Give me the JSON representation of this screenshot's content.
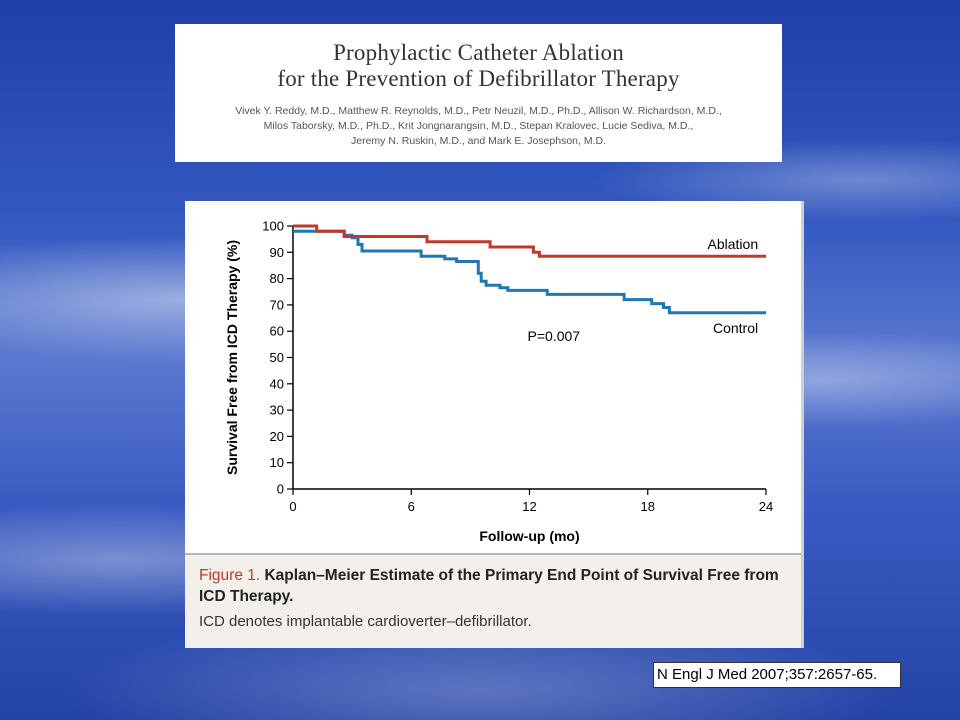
{
  "slide": {
    "title_line1": "Prophylactic Catheter Ablation",
    "title_line2": "for the Prevention of Defibrillator Therapy",
    "authors_line1": "Vivek Y. Reddy, M.D., Matthew R. Reynolds, M.D., Petr Neuzil, M.D., Ph.D., Allison W. Richardson, M.D.,",
    "authors_line2": "Milos Taborsky, M.D., Ph.D., Krit Jongnarangsin, M.D., Stepan Kralovec, Lucie Sediva, M.D.,",
    "authors_line3": "Jeremy N. Ruskin, M.D., and Mark E. Josephson, M.D.",
    "citation": "N Engl J Med 2007;357:2657-65."
  },
  "figure": {
    "label": "Figure 1.",
    "title": "Kaplan–Meier Estimate of the Primary End Point of Survival Free from ICD Therapy.",
    "description": "ICD denotes implantable cardioverter–defibrillator."
  },
  "chart_data": {
    "type": "line",
    "step": true,
    "xlabel": "Follow-up (mo)",
    "ylabel": "Survival Free from ICD Therapy (%)",
    "xlim": [
      0,
      24
    ],
    "ylim": [
      0,
      100
    ],
    "x_ticks": [
      0,
      6,
      12,
      18,
      24
    ],
    "y_ticks": [
      0,
      10,
      20,
      30,
      40,
      50,
      60,
      70,
      80,
      90,
      100
    ],
    "grid": false,
    "annotation": "P=0.007",
    "series": [
      {
        "name": "Ablation",
        "color": "#c0392b",
        "points": [
          [
            0,
            100
          ],
          [
            1.2,
            100
          ],
          [
            1.2,
            98
          ],
          [
            2.6,
            98
          ],
          [
            2.6,
            96
          ],
          [
            6.8,
            96
          ],
          [
            6.8,
            94
          ],
          [
            10,
            94
          ],
          [
            10,
            92
          ],
          [
            12.2,
            92
          ],
          [
            12.2,
            90
          ],
          [
            12.5,
            90
          ],
          [
            12.5,
            88.5
          ],
          [
            24,
            88.5
          ]
        ]
      },
      {
        "name": "Control",
        "color": "#1f78b4",
        "points": [
          [
            0,
            98
          ],
          [
            2.6,
            98
          ],
          [
            2.6,
            96.5
          ],
          [
            3,
            96.5
          ],
          [
            3,
            95.5
          ],
          [
            3.3,
            95.5
          ],
          [
            3.3,
            93
          ],
          [
            3.5,
            93
          ],
          [
            3.5,
            90.5
          ],
          [
            6.5,
            90.5
          ],
          [
            6.5,
            88.5
          ],
          [
            7.7,
            88.5
          ],
          [
            7.7,
            87.5
          ],
          [
            8.3,
            87.5
          ],
          [
            8.3,
            86.5
          ],
          [
            9.4,
            86.5
          ],
          [
            9.4,
            82
          ],
          [
            9.55,
            82
          ],
          [
            9.55,
            79
          ],
          [
            9.8,
            79
          ],
          [
            9.8,
            77.5
          ],
          [
            10.5,
            77.5
          ],
          [
            10.5,
            76.5
          ],
          [
            10.9,
            76.5
          ],
          [
            10.9,
            75.5
          ],
          [
            12.9,
            75.5
          ],
          [
            12.9,
            74
          ],
          [
            16.8,
            74
          ],
          [
            16.8,
            72
          ],
          [
            18.2,
            72
          ],
          [
            18.2,
            70.5
          ],
          [
            18.8,
            70.5
          ],
          [
            18.8,
            69
          ],
          [
            19.1,
            69
          ],
          [
            19.1,
            67
          ],
          [
            24,
            67
          ]
        ]
      }
    ]
  }
}
